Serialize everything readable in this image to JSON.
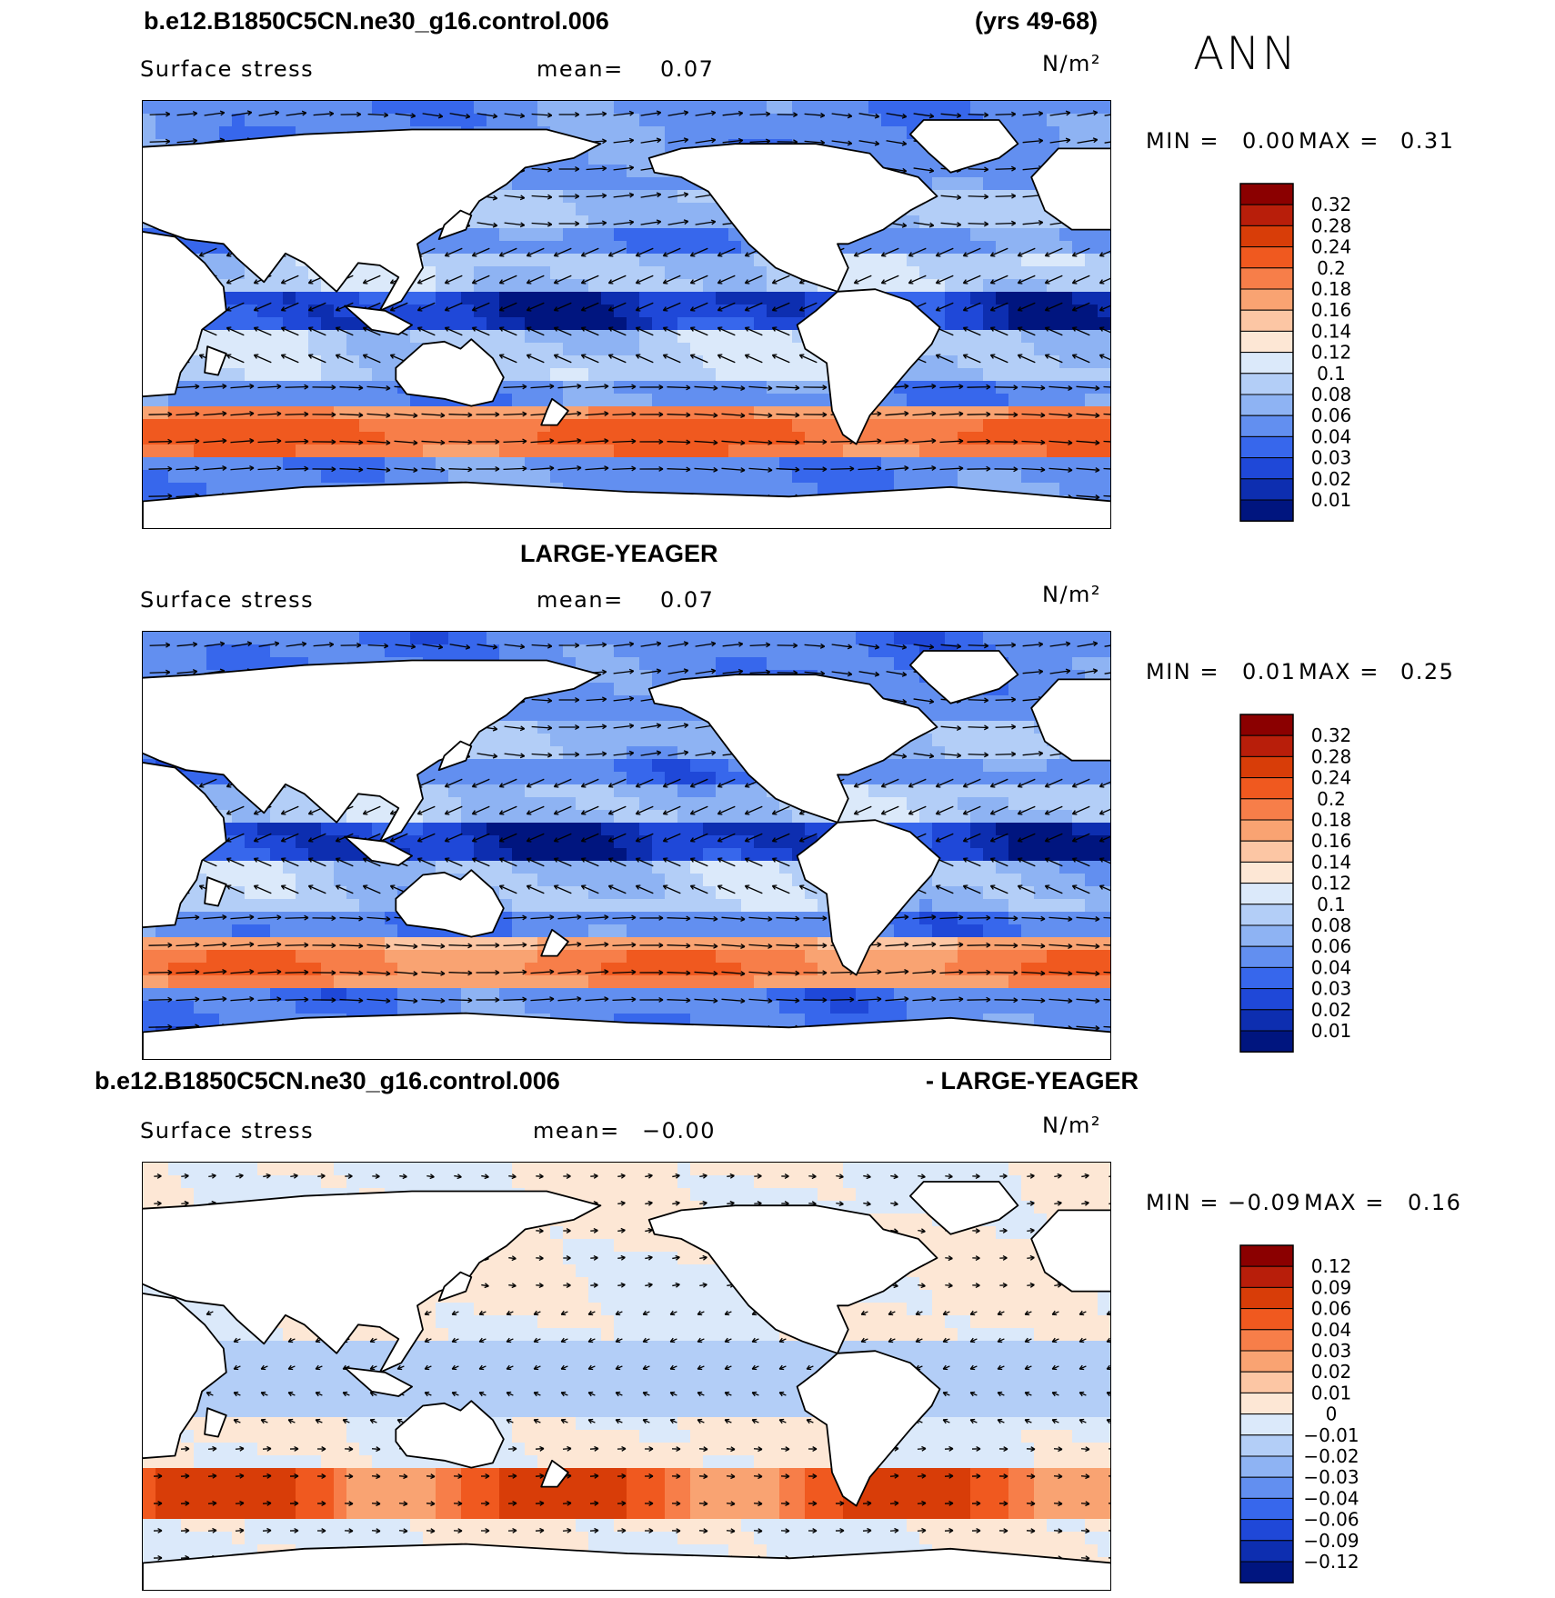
{
  "header": {
    "case_title": "b.e12.B1850C5CN.ne30_g16.control.006",
    "years": "(yrs 49-68)",
    "season": "ANN"
  },
  "panels": [
    {
      "id": "model",
      "variable": "Surface stress",
      "mean_label": "mean=",
      "mean_value": "0.07",
      "units": "N/m²",
      "min_label": "MIN =",
      "min_value": "0.00",
      "max_label": "MAX =",
      "max_value": "0.31",
      "colorbar_levels": [
        "0.32",
        "0.28",
        "0.24",
        "0.2",
        "0.18",
        "0.16",
        "0.14",
        "0.12",
        "0.1",
        "0.08",
        "0.06",
        "0.04",
        "0.03",
        "0.02",
        "0.01"
      ],
      "colorbar_colors": [
        "#8b0000",
        "#b81e0a",
        "#d83d08",
        "#f0591f",
        "#f77e49",
        "#f9a372",
        "#fcc6a4",
        "#fde7d5",
        "#dbe9fa",
        "#b3cef7",
        "#8eb3f3",
        "#628ff0",
        "#3767ec",
        "#1f48d8",
        "#0d2eb0",
        "#00157f"
      ]
    },
    {
      "id": "obs",
      "title": "LARGE-YEAGER",
      "variable": "Surface stress",
      "mean_label": "mean=",
      "mean_value": "0.07",
      "units": "N/m²",
      "min_label": "MIN =",
      "min_value": "0.01",
      "max_label": "MAX =",
      "max_value": "0.25",
      "colorbar_levels": [
        "0.32",
        "0.28",
        "0.24",
        "0.2",
        "0.18",
        "0.16",
        "0.14",
        "0.12",
        "0.1",
        "0.08",
        "0.06",
        "0.04",
        "0.03",
        "0.02",
        "0.01"
      ],
      "colorbar_colors": [
        "#8b0000",
        "#b81e0a",
        "#d83d08",
        "#f0591f",
        "#f77e49",
        "#f9a372",
        "#fcc6a4",
        "#fde7d5",
        "#dbe9fa",
        "#b3cef7",
        "#8eb3f3",
        "#628ff0",
        "#3767ec",
        "#1f48d8",
        "#0d2eb0",
        "#00157f"
      ]
    },
    {
      "id": "diff",
      "title_left": "b.e12.B1850C5CN.ne30_g16.control.006",
      "title_right": "- LARGE-YEAGER",
      "variable": "Surface stress",
      "mean_label": "mean=",
      "mean_value": "−0.00",
      "units": "N/m²",
      "min_label": "MIN =",
      "min_value": "−0.09",
      "max_label": "MAX =",
      "max_value": "0.16",
      "colorbar_levels": [
        "0.12",
        "0.09",
        "0.06",
        "0.04",
        "0.03",
        "0.02",
        "0.01",
        "0",
        "−0.01",
        "−0.02",
        "−0.03",
        "−0.04",
        "−0.06",
        "−0.09",
        "−0.12"
      ],
      "colorbar_colors": [
        "#8b0000",
        "#b81e0a",
        "#d83d08",
        "#f0591f",
        "#f77e49",
        "#f9a372",
        "#fcc6a4",
        "#fde7d5",
        "#dbe9fa",
        "#b3cef7",
        "#8eb3f3",
        "#628ff0",
        "#3767ec",
        "#1f48d8",
        "#0d2eb0",
        "#00157f"
      ]
    }
  ]
}
